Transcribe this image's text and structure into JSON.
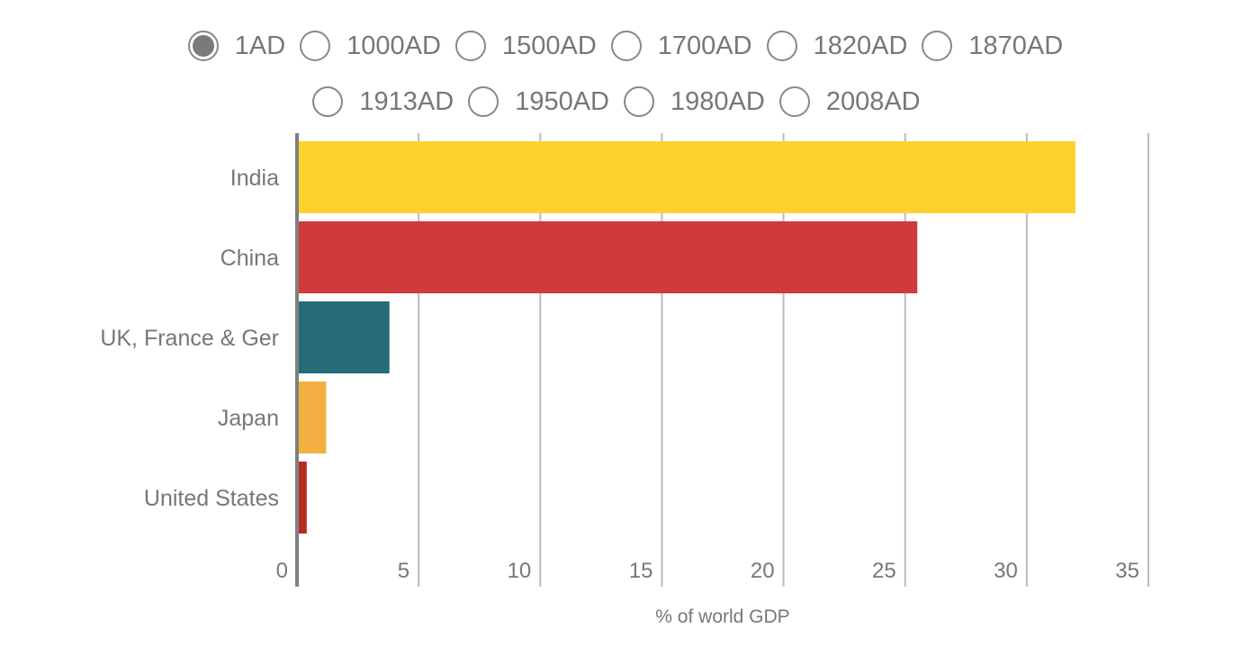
{
  "years": {
    "selected": "1AD",
    "row1": [
      "1AD",
      "1000AD",
      "1500AD",
      "1700AD",
      "1820AD",
      "1870AD"
    ],
    "row2": [
      "1913AD",
      "1950AD",
      "1980AD",
      "2008AD"
    ]
  },
  "chart_data": {
    "type": "bar",
    "orientation": "horizontal",
    "categories": [
      "India",
      "China",
      "UK, France & Ger",
      "Japan",
      "United States"
    ],
    "values": [
      32.0,
      25.5,
      3.8,
      1.2,
      0.4
    ],
    "colors": [
      "#fdd22e",
      "#cf3a3a",
      "#256b78",
      "#f2b043",
      "#b72a22"
    ],
    "title": "",
    "xlabel": "% of world GDP",
    "ylabel": "",
    "xlim": [
      0,
      35
    ],
    "xticks": [
      0,
      5,
      10,
      15,
      20,
      25,
      30,
      35
    ],
    "grid": true
  }
}
